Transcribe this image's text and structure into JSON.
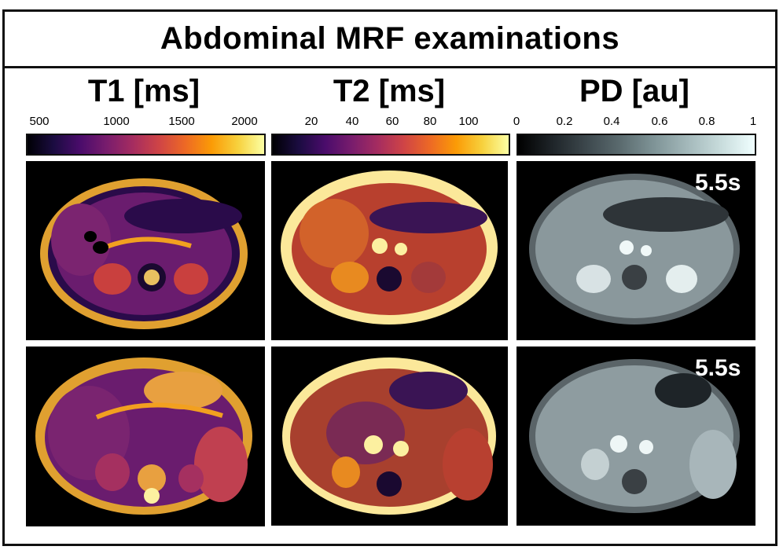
{
  "title": "Abdominal MRF examinations",
  "columns": [
    {
      "label": "T1 [ms]",
      "ticks": [
        "500",
        "1000",
        "1500",
        "2000"
      ]
    },
    {
      "label": "T2 [ms]",
      "ticks": [
        "20",
        "40",
        "60",
        "80",
        "100"
      ]
    },
    {
      "label": "PD [au]",
      "ticks": [
        "0",
        "0.2",
        "0.4",
        "0.6",
        "0.8",
        "1"
      ]
    }
  ],
  "pd_time_labels": [
    "5.5s",
    "5.5s"
  ],
  "colors": {
    "border": "#111111",
    "background": "#ffffff",
    "panel_bg": "#000000"
  },
  "colormaps": {
    "T1": "inferno",
    "T2": "inferno",
    "PD": "bone"
  }
}
